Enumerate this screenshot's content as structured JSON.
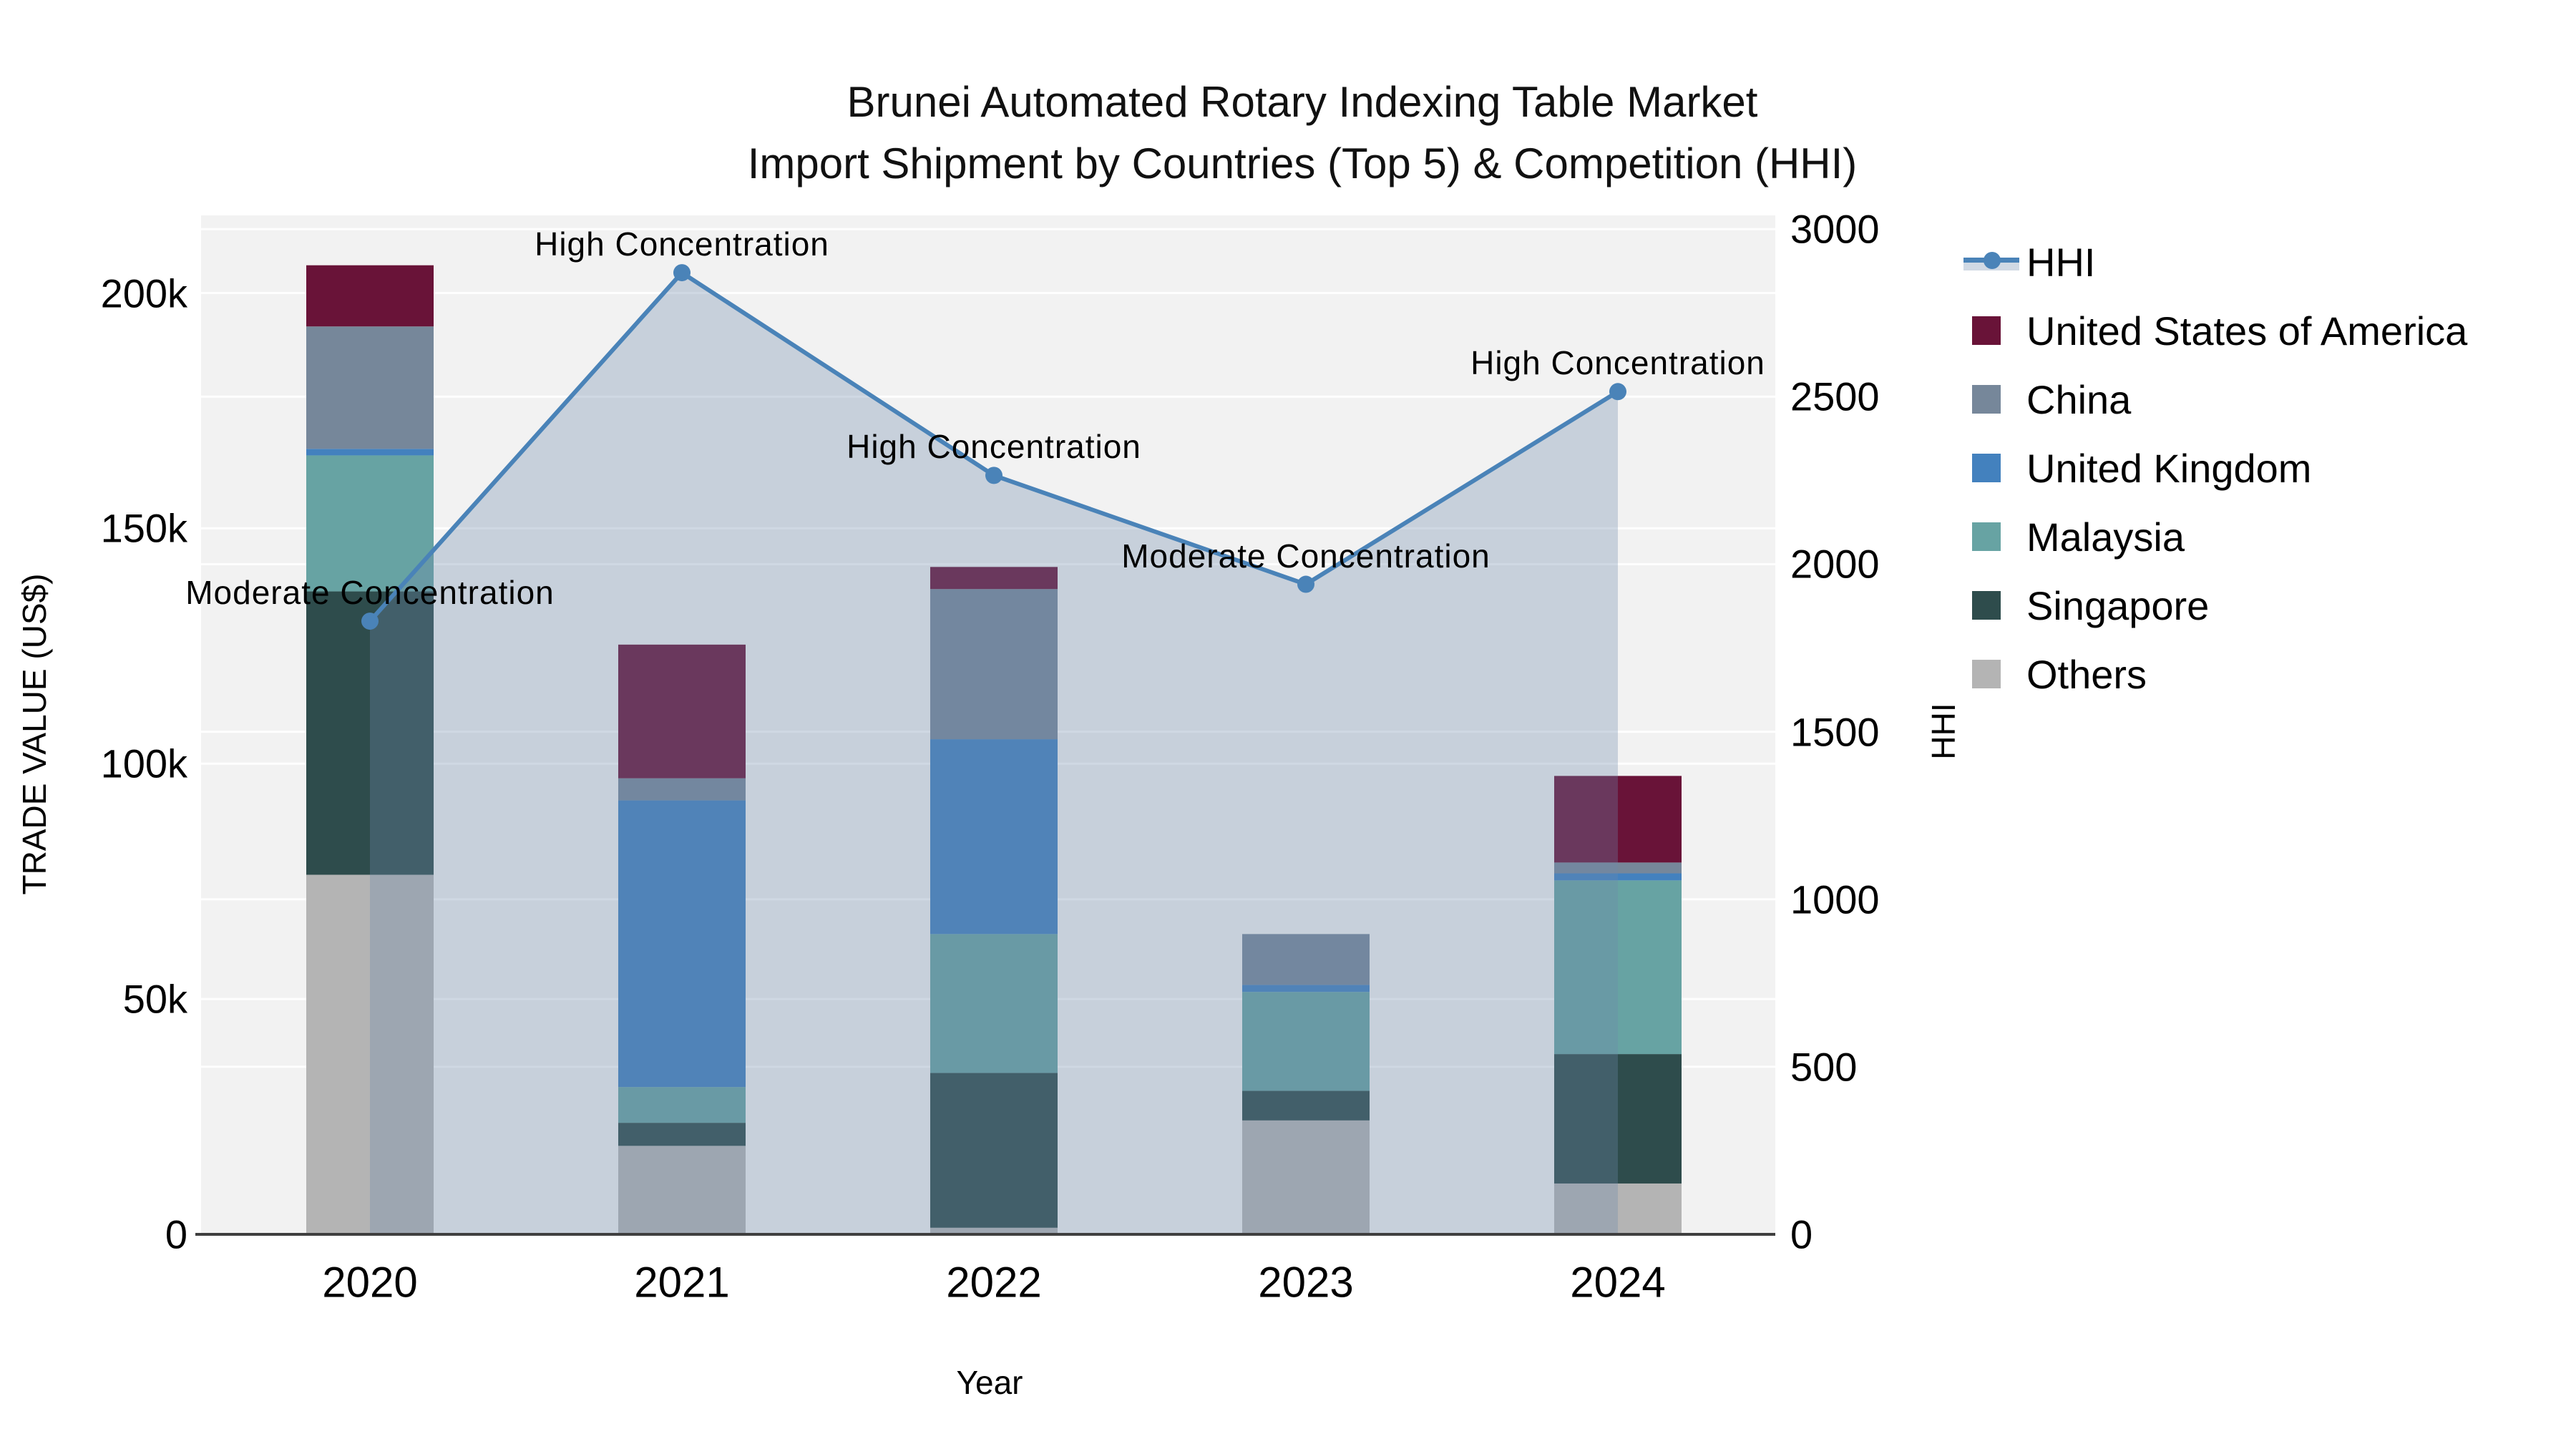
{
  "title": {
    "line1": "Brunei Automated Rotary Indexing Table Market",
    "line2": "Import Shipment by Countries (Top 5) & Competition (HHI)"
  },
  "chart_data": {
    "type": "combo-stacked-bar-line",
    "categories": [
      "2020",
      "2021",
      "2022",
      "2023",
      "2024"
    ],
    "bar_value_unit": "US$",
    "series": [
      {
        "name": "United States of America",
        "color": "#691338",
        "values": [
          13000,
          28400,
          4700,
          0,
          18400
        ]
      },
      {
        "name": "China",
        "color": "#76879A",
        "values": [
          26000,
          4700,
          31900,
          10800,
          2300
        ]
      },
      {
        "name": "United Kingdom",
        "color": "#4381BE",
        "values": [
          1400,
          60900,
          41400,
          1500,
          1500
        ]
      },
      {
        "name": "Malaysia",
        "color": "#67A3A3",
        "values": [
          28900,
          7600,
          29500,
          21000,
          36900
        ]
      },
      {
        "name": "Singapore",
        "color": "#2E4C4C",
        "values": [
          60200,
          4900,
          32900,
          6300,
          27500
        ]
      },
      {
        "name": "Others",
        "color": "#B4B4B4",
        "values": [
          76400,
          18800,
          1400,
          24200,
          10800
        ]
      }
    ],
    "stack_order_bottom_to_top": [
      "Others",
      "Singapore",
      "Malaysia",
      "United Kingdom",
      "China",
      "United States of America"
    ],
    "bar_totals": [
      205900,
      125300,
      141800,
      63800,
      97400
    ],
    "line_series": {
      "name": "HHI",
      "color": "#4A83B8",
      "fill_color": "rgba(110,138,170,0.32)",
      "values": [
        1830,
        2870,
        2265,
        1940,
        2515
      ]
    },
    "annotations": [
      {
        "category": "2020",
        "text": "Moderate Concentration"
      },
      {
        "category": "2021",
        "text": "High Concentration"
      },
      {
        "category": "2022",
        "text": "High Concentration"
      },
      {
        "category": "2023",
        "text": "Moderate Concentration"
      },
      {
        "category": "2024",
        "text": "High Concentration"
      }
    ],
    "y_left": {
      "title": "TRADE VALUE (US$)",
      "range": [
        0,
        216500
      ],
      "ticks": [
        {
          "value": 0,
          "label": "0"
        },
        {
          "value": 50000,
          "label": "50k"
        },
        {
          "value": 100000,
          "label": "100k"
        },
        {
          "value": 150000,
          "label": "150k"
        },
        {
          "value": 200000,
          "label": "200k"
        }
      ]
    },
    "y_right": {
      "title": "HHI",
      "range": [
        0,
        3041
      ],
      "ticks": [
        {
          "value": 0,
          "label": "0"
        },
        {
          "value": 500,
          "label": "500"
        },
        {
          "value": 1000,
          "label": "1000"
        },
        {
          "value": 1500,
          "label": "1500"
        },
        {
          "value": 2000,
          "label": "2000"
        },
        {
          "value": 2500,
          "label": "2500"
        },
        {
          "value": 3000,
          "label": "3000"
        }
      ]
    },
    "x_axis": {
      "title": "Year"
    },
    "legend_items": [
      "HHI",
      "United States of America",
      "China",
      "United Kingdom",
      "Malaysia",
      "Singapore",
      "Others"
    ],
    "plot_background": "#f2f2f2",
    "gridline_color": "rgba(255,255,255,0.9)",
    "axis_line_color": "#3f3f3f"
  }
}
